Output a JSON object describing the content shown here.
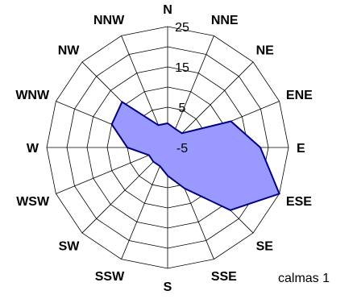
{
  "chart_data": {
    "type": "radar",
    "directions": [
      "N",
      "NNE",
      "NE",
      "ENE",
      "E",
      "ESE",
      "SE",
      "SSE",
      "S",
      "SSW",
      "SW",
      "WSW",
      "W",
      "WNW",
      "NW",
      "NNW"
    ],
    "values": [
      1,
      0,
      0,
      12,
      18,
      25,
      17,
      6,
      2,
      0,
      0,
      0,
      5,
      10,
      11,
      1
    ],
    "ticks": [
      -5,
      5,
      15,
      25
    ],
    "range": [
      -5,
      25
    ],
    "series": [
      {
        "values": [
          1,
          0,
          0,
          12,
          18,
          25,
          17,
          6,
          2,
          0,
          0,
          0,
          5,
          10,
          11,
          1
        ]
      }
    ],
    "fill_color": "#9999ff",
    "line_color": "#000080",
    "grid_color": "#000000",
    "note": "calmas 1"
  }
}
